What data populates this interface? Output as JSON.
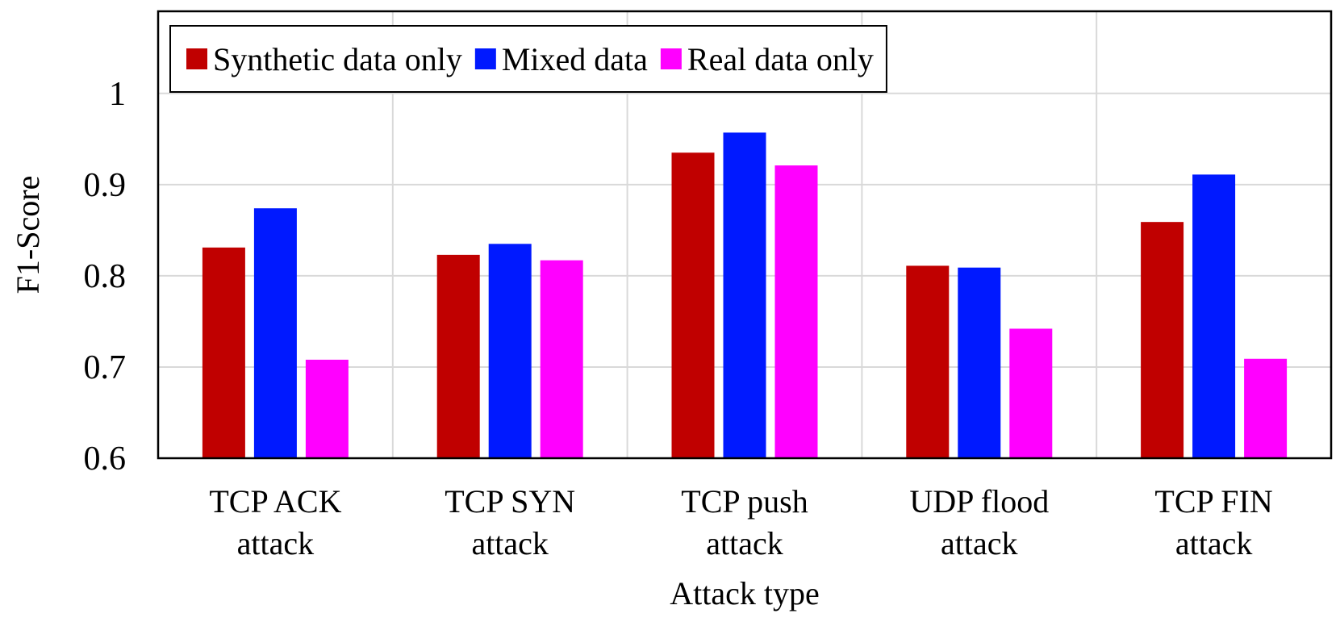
{
  "chart_data": {
    "type": "bar",
    "title": "",
    "xlabel": "Attack type",
    "ylabel": "F1-Score",
    "ylim": [
      0.6,
      1.09
    ],
    "yticks": [
      "0.6",
      "0.7",
      "0.8",
      "0.9",
      "1"
    ],
    "ytick_values": [
      0.6,
      0.7,
      0.8,
      0.9,
      1.0
    ],
    "grid": true,
    "legend_position": "top-left",
    "categories": [
      [
        "TCP ACK",
        "attack"
      ],
      [
        "TCP SYN",
        "attack"
      ],
      [
        "TCP push",
        "attack"
      ],
      [
        "UDP  flood",
        "attack"
      ],
      [
        "TCP FIN",
        "attack"
      ]
    ],
    "series": [
      {
        "name": "Synthetic data only",
        "color": "#C00000",
        "values": [
          0.831,
          0.823,
          0.935,
          0.811,
          0.859
        ]
      },
      {
        "name": "Mixed data",
        "color": "#0019FF",
        "values": [
          0.874,
          0.835,
          0.957,
          0.809,
          0.911
        ]
      },
      {
        "name": "Real data only",
        "color": "#FF00FF",
        "values": [
          0.708,
          0.817,
          0.921,
          0.742,
          0.709
        ]
      }
    ]
  }
}
